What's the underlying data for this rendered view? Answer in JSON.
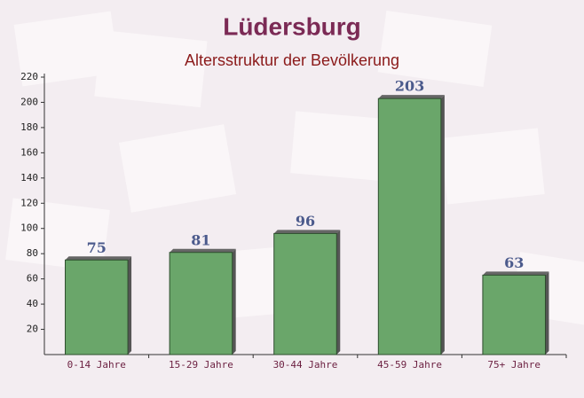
{
  "chart_data": {
    "type": "bar",
    "title": "Lüdersburg",
    "subtitle": "Altersstruktur der Bevölkerung",
    "categories": [
      "0-14 Jahre",
      "15-29 Jahre",
      "30-44 Jahre",
      "45-59 Jahre",
      "75+ Jahre"
    ],
    "values": [
      75,
      81,
      96,
      203,
      63
    ],
    "color": "#6aa66a",
    "ylim": [
      0,
      220
    ],
    "yticks": [
      20,
      40,
      60,
      80,
      100,
      120,
      140,
      160,
      180,
      200,
      220
    ],
    "grid": false
  }
}
